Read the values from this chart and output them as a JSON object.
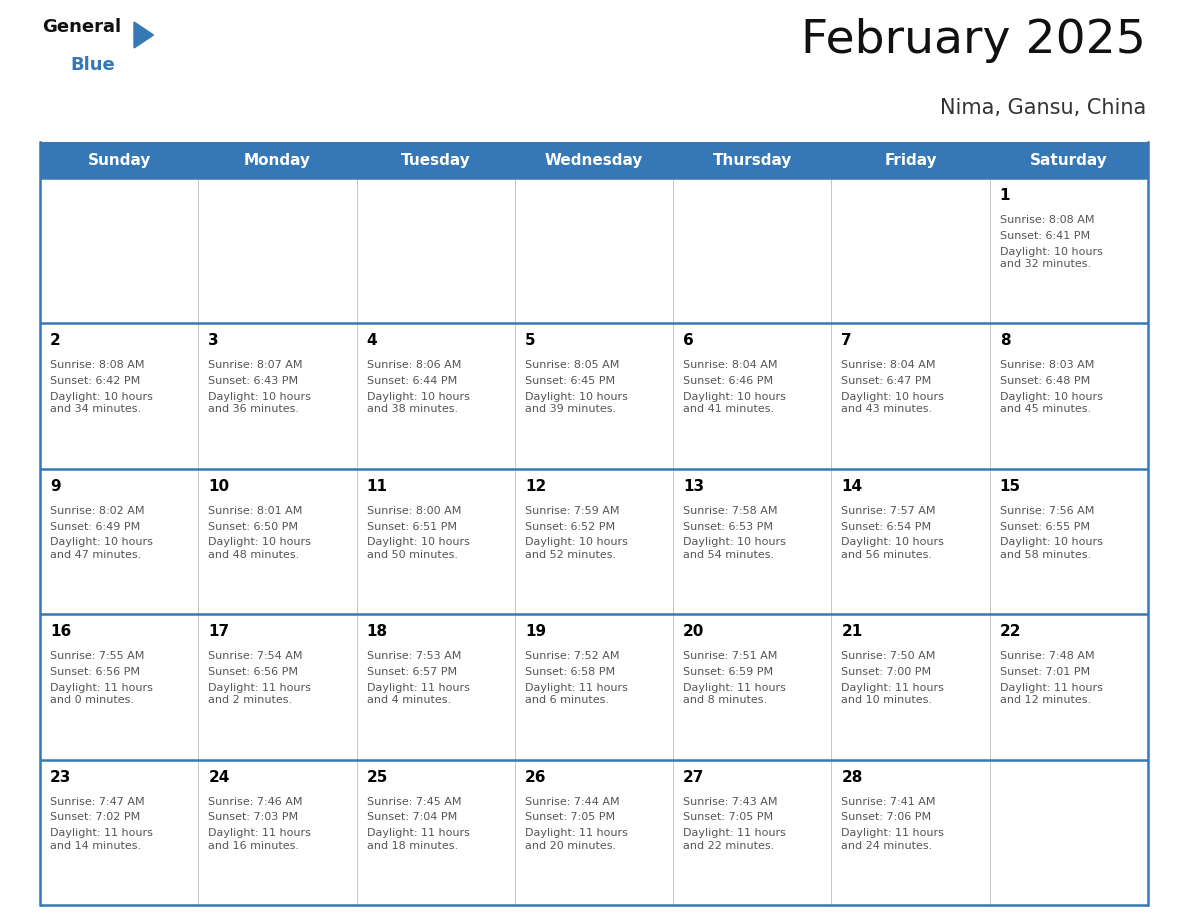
{
  "title": "February 2025",
  "subtitle": "Nima, Gansu, China",
  "header_color": "#3578b5",
  "header_text_color": "#ffffff",
  "day_names": [
    "Sunday",
    "Monday",
    "Tuesday",
    "Wednesday",
    "Thursday",
    "Friday",
    "Saturday"
  ],
  "bg_color": "#ffffff",
  "cell_bg_color": "#ffffff",
  "grid_line_color": "#3578b5",
  "day_num_color": "#000000",
  "info_text_color": "#555555",
  "title_color": "#111111",
  "subtitle_color": "#333333",
  "logo_general_color": "#111111",
  "logo_blue_color": "#3578b5",
  "logo_triangle_color": "#3578b5",
  "calendar": [
    [
      null,
      null,
      null,
      null,
      null,
      null,
      {
        "day": 1,
        "sunrise": "8:08 AM",
        "sunset": "6:41 PM",
        "daylight": "10 hours\nand 32 minutes."
      }
    ],
    [
      {
        "day": 2,
        "sunrise": "8:08 AM",
        "sunset": "6:42 PM",
        "daylight": "10 hours\nand 34 minutes."
      },
      {
        "day": 3,
        "sunrise": "8:07 AM",
        "sunset": "6:43 PM",
        "daylight": "10 hours\nand 36 minutes."
      },
      {
        "day": 4,
        "sunrise": "8:06 AM",
        "sunset": "6:44 PM",
        "daylight": "10 hours\nand 38 minutes."
      },
      {
        "day": 5,
        "sunrise": "8:05 AM",
        "sunset": "6:45 PM",
        "daylight": "10 hours\nand 39 minutes."
      },
      {
        "day": 6,
        "sunrise": "8:04 AM",
        "sunset": "6:46 PM",
        "daylight": "10 hours\nand 41 minutes."
      },
      {
        "day": 7,
        "sunrise": "8:04 AM",
        "sunset": "6:47 PM",
        "daylight": "10 hours\nand 43 minutes."
      },
      {
        "day": 8,
        "sunrise": "8:03 AM",
        "sunset": "6:48 PM",
        "daylight": "10 hours\nand 45 minutes."
      }
    ],
    [
      {
        "day": 9,
        "sunrise": "8:02 AM",
        "sunset": "6:49 PM",
        "daylight": "10 hours\nand 47 minutes."
      },
      {
        "day": 10,
        "sunrise": "8:01 AM",
        "sunset": "6:50 PM",
        "daylight": "10 hours\nand 48 minutes."
      },
      {
        "day": 11,
        "sunrise": "8:00 AM",
        "sunset": "6:51 PM",
        "daylight": "10 hours\nand 50 minutes."
      },
      {
        "day": 12,
        "sunrise": "7:59 AM",
        "sunset": "6:52 PM",
        "daylight": "10 hours\nand 52 minutes."
      },
      {
        "day": 13,
        "sunrise": "7:58 AM",
        "sunset": "6:53 PM",
        "daylight": "10 hours\nand 54 minutes."
      },
      {
        "day": 14,
        "sunrise": "7:57 AM",
        "sunset": "6:54 PM",
        "daylight": "10 hours\nand 56 minutes."
      },
      {
        "day": 15,
        "sunrise": "7:56 AM",
        "sunset": "6:55 PM",
        "daylight": "10 hours\nand 58 minutes."
      }
    ],
    [
      {
        "day": 16,
        "sunrise": "7:55 AM",
        "sunset": "6:56 PM",
        "daylight": "11 hours\nand 0 minutes."
      },
      {
        "day": 17,
        "sunrise": "7:54 AM",
        "sunset": "6:56 PM",
        "daylight": "11 hours\nand 2 minutes."
      },
      {
        "day": 18,
        "sunrise": "7:53 AM",
        "sunset": "6:57 PM",
        "daylight": "11 hours\nand 4 minutes."
      },
      {
        "day": 19,
        "sunrise": "7:52 AM",
        "sunset": "6:58 PM",
        "daylight": "11 hours\nand 6 minutes."
      },
      {
        "day": 20,
        "sunrise": "7:51 AM",
        "sunset": "6:59 PM",
        "daylight": "11 hours\nand 8 minutes."
      },
      {
        "day": 21,
        "sunrise": "7:50 AM",
        "sunset": "7:00 PM",
        "daylight": "11 hours\nand 10 minutes."
      },
      {
        "day": 22,
        "sunrise": "7:48 AM",
        "sunset": "7:01 PM",
        "daylight": "11 hours\nand 12 minutes."
      }
    ],
    [
      {
        "day": 23,
        "sunrise": "7:47 AM",
        "sunset": "7:02 PM",
        "daylight": "11 hours\nand 14 minutes."
      },
      {
        "day": 24,
        "sunrise": "7:46 AM",
        "sunset": "7:03 PM",
        "daylight": "11 hours\nand 16 minutes."
      },
      {
        "day": 25,
        "sunrise": "7:45 AM",
        "sunset": "7:04 PM",
        "daylight": "11 hours\nand 18 minutes."
      },
      {
        "day": 26,
        "sunrise": "7:44 AM",
        "sunset": "7:05 PM",
        "daylight": "11 hours\nand 20 minutes."
      },
      {
        "day": 27,
        "sunrise": "7:43 AM",
        "sunset": "7:05 PM",
        "daylight": "11 hours\nand 22 minutes."
      },
      {
        "day": 28,
        "sunrise": "7:41 AM",
        "sunset": "7:06 PM",
        "daylight": "11 hours\nand 24 minutes."
      },
      null
    ]
  ]
}
